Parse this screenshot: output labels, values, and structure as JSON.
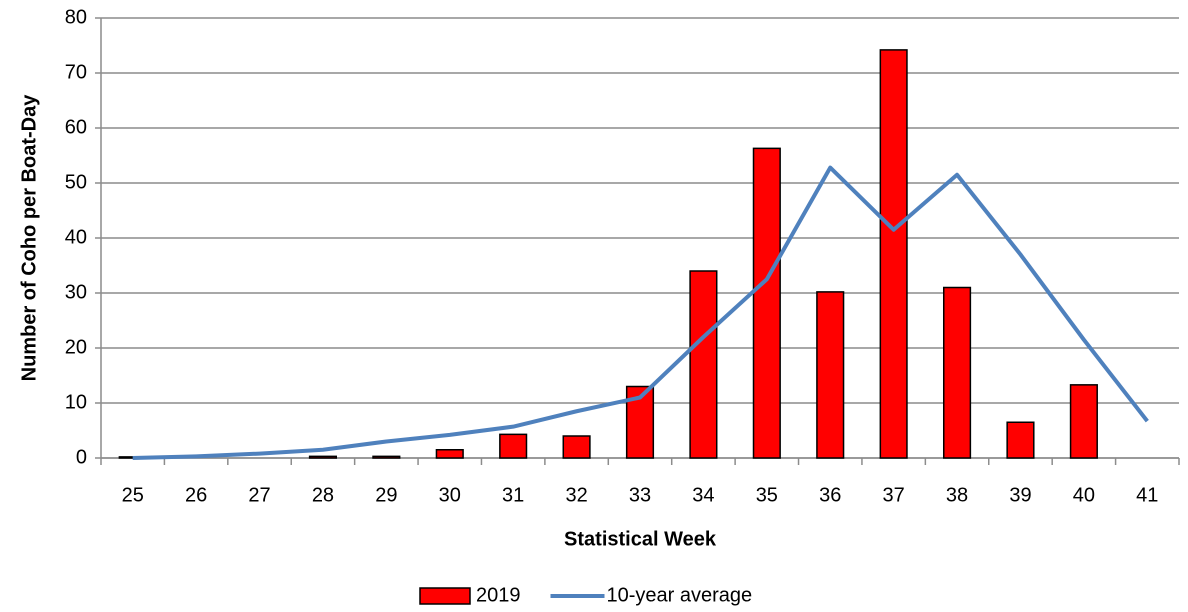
{
  "chart_data": {
    "type": "bar",
    "x_label": "Statistical Week",
    "y_label": "Number of Coho per Boat-Day",
    "categories": [
      "25",
      "26",
      "27",
      "28",
      "29",
      "30",
      "31",
      "32",
      "33",
      "34",
      "35",
      "36",
      "37",
      "38",
      "39",
      "40",
      "41"
    ],
    "series": [
      {
        "name": "2019",
        "type": "bar",
        "color": "#ff0000",
        "values": [
          0.2,
          0,
          0,
          0.3,
          0.3,
          1.5,
          4.3,
          4,
          13,
          34,
          56.3,
          30.2,
          74.2,
          31,
          6.5,
          13.3,
          null
        ]
      },
      {
        "name": "10-year average",
        "type": "line",
        "color": "#4f81bd",
        "values": [
          0,
          0.3,
          0.8,
          1.5,
          3,
          4.2,
          5.7,
          8.5,
          11,
          22,
          32.5,
          52.8,
          41.5,
          51.5,
          37,
          21.5,
          6.7
        ]
      }
    ],
    "ylim": [
      0,
      80
    ],
    "yticks": [
      0,
      10,
      20,
      30,
      40,
      50,
      60,
      70,
      80
    ],
    "grid": true,
    "legend": "bottom"
  }
}
